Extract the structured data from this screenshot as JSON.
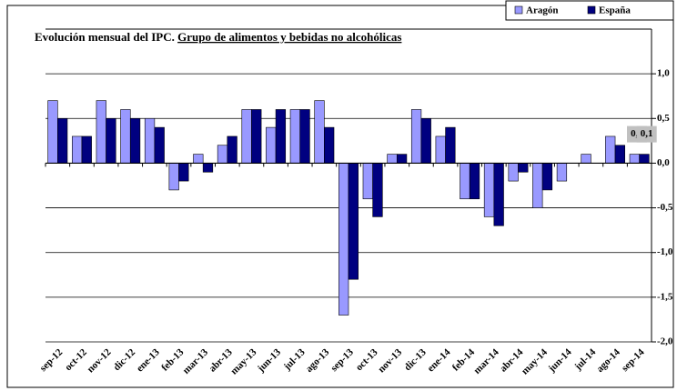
{
  "chart_data": {
    "type": "bar",
    "title": "Evolución mensual del IPC.",
    "subtitle": "Grupo de alimentos y bebidas no alcohólicas",
    "categories": [
      "sep-12",
      "oct-12",
      "nov-12",
      "dic-12",
      "ene-13",
      "feb-13",
      "mar-13",
      "abr-13",
      "may-13",
      "jun-13",
      "jul-13",
      "ago-13",
      "sep-13",
      "oct-13",
      "nov-13",
      "dic-13",
      "ene-14",
      "feb-14",
      "mar-14",
      "abr-14",
      "may-14",
      "jun-14",
      "jul-14",
      "ago-14",
      "sep-14"
    ],
    "series": [
      {
        "name": "Aragón",
        "color": "#9999ff",
        "values": [
          0.7,
          0.3,
          0.7,
          0.6,
          0.5,
          -0.3,
          0.1,
          0.2,
          0.6,
          0.4,
          0.6,
          0.7,
          -1.7,
          -0.4,
          0.1,
          0.6,
          0.3,
          -0.4,
          -0.6,
          -0.2,
          -0.5,
          -0.2,
          0.1,
          0.3,
          0.1
        ],
        "value_labels": [
          null,
          null,
          null,
          null,
          null,
          null,
          null,
          null,
          null,
          null,
          null,
          null,
          null,
          null,
          null,
          null,
          null,
          null,
          null,
          null,
          null,
          null,
          null,
          null,
          "0,1"
        ]
      },
      {
        "name": "España",
        "color": "#000080",
        "values": [
          0.5,
          0.3,
          0.5,
          0.5,
          0.4,
          -0.2,
          -0.1,
          0.3,
          0.6,
          0.6,
          0.6,
          0.4,
          -1.3,
          -0.6,
          0.1,
          0.5,
          0.4,
          -0.4,
          -0.7,
          -0.1,
          -0.3,
          0,
          0,
          0.2,
          0.1
        ],
        "value_labels": [
          null,
          null,
          null,
          null,
          null,
          null,
          null,
          null,
          null,
          null,
          null,
          null,
          null,
          null,
          null,
          null,
          null,
          null,
          null,
          null,
          null,
          null,
          null,
          null,
          "0,1"
        ]
      }
    ],
    "ylim": [
      -2,
      1.5
    ],
    "yticks": [
      {
        "value": -2,
        "label": "-2,0"
      },
      {
        "value": -1.5,
        "label": "-1,5"
      },
      {
        "value": -1,
        "label": "-1,0"
      },
      {
        "value": -0.5,
        "label": "-0,5"
      },
      {
        "value": 0,
        "label": "0,0"
      },
      {
        "value": 0.5,
        "label": "0,5"
      },
      {
        "value": 1,
        "label": "1,0"
      }
    ],
    "grid": true,
    "legend": "top-right"
  }
}
